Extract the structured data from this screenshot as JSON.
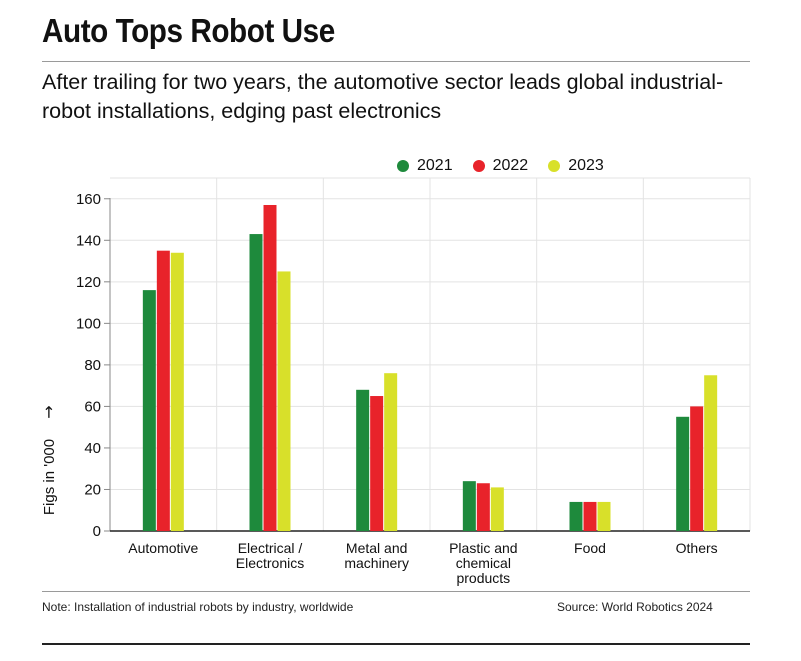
{
  "header": {
    "title": "Auto Tops Robot Use",
    "subtitle": "After trailing for two years, the automotive sector leads global industrial-robot installations, edging past electronics"
  },
  "chart_data": {
    "type": "bar",
    "categories": [
      "Automotive",
      "Electrical / Electronics",
      "Metal and machinery",
      "Plastic and chemical products",
      "Food",
      "Others"
    ],
    "category_lines": [
      [
        "Automotive"
      ],
      [
        "Electrical /",
        "Electronics"
      ],
      [
        "Metal and",
        "machinery"
      ],
      [
        "Plastic and",
        "chemical",
        "products"
      ],
      [
        "Food"
      ],
      [
        "Others"
      ]
    ],
    "series": [
      {
        "name": "2021",
        "color": "#1e8a3c",
        "values": [
          116,
          143,
          68,
          24,
          14,
          55
        ]
      },
      {
        "name": "2022",
        "color": "#e8232a",
        "values": [
          135,
          157,
          65,
          23,
          14,
          60
        ]
      },
      {
        "name": "2023",
        "color": "#d8e02a",
        "values": [
          134,
          125,
          76,
          21,
          14,
          75
        ]
      }
    ],
    "ylabel": "Figs in '000",
    "ylabel_arrow": "→",
    "ylim": [
      0,
      170
    ],
    "yticks": [
      0,
      20,
      40,
      60,
      80,
      100,
      120,
      140,
      160
    ],
    "grid": true,
    "legend_position": "top-right"
  },
  "footer": {
    "note": "Note: Installation of industrial robots by industry, worldwide",
    "source": "Source: World Robotics 2024"
  }
}
